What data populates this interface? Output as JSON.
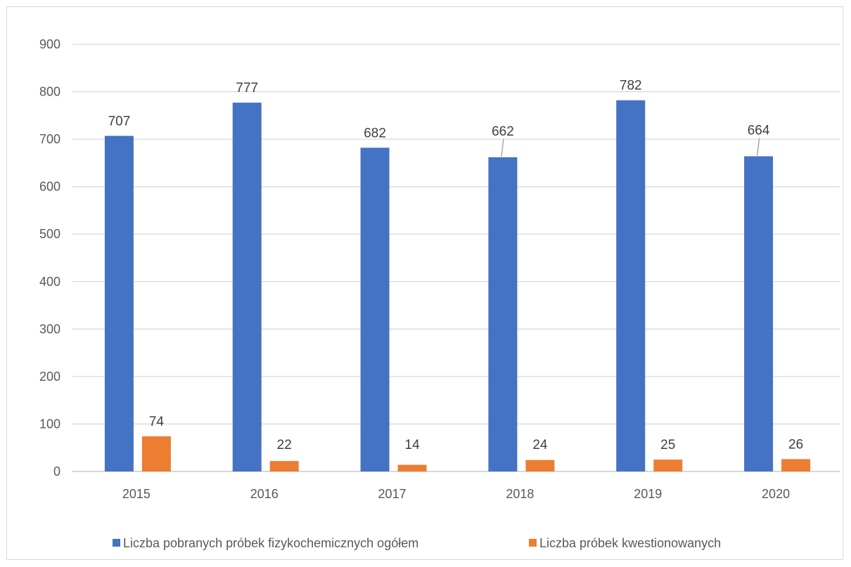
{
  "chart_data": {
    "type": "bar",
    "categories": [
      "2015",
      "2016",
      "2017",
      "2018",
      "2019",
      "2020"
    ],
    "series": [
      {
        "name": "Liczba pobranych próbek fizykochemicznych ogółem",
        "values": [
          707,
          777,
          682,
          662,
          782,
          664
        ],
        "color": "#4472C4"
      },
      {
        "name": "Liczba próbek kwestionowanych",
        "values": [
          74,
          22,
          14,
          24,
          25,
          26
        ],
        "color": "#ED7D31"
      }
    ],
    "title": "",
    "xlabel": "",
    "ylabel": "",
    "ylim": [
      0,
      900
    ],
    "yticks": [
      0,
      100,
      200,
      300,
      400,
      500,
      600,
      700,
      800,
      900
    ],
    "grid": true,
    "legend": "bottom",
    "data_labels": true
  }
}
